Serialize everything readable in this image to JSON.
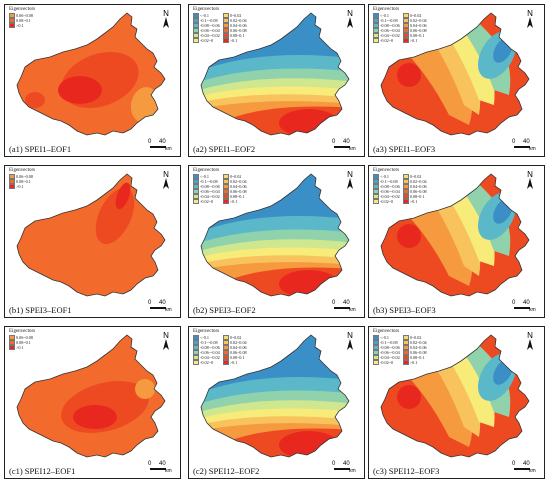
{
  "legend_title": "Eigenvectors",
  "north_label": "N",
  "scale": {
    "zero": "0",
    "forty": "40",
    "unit": "km"
  },
  "colors": {
    "deep_red": "#e8281e",
    "red": "#ee4a22",
    "orange_red": "#f26a2c",
    "orange": "#f59a3e",
    "light_orange": "#f8c35c",
    "yellow": "#f7ec7a",
    "light_green": "#cfe78f",
    "green": "#8fd2ab",
    "teal": "#5bb8c9",
    "blue": "#3a8fc6"
  },
  "legend_eof1": [
    {
      "label": "0.06~0.08",
      "color": "#f59a3e"
    },
    {
      "label": "0.08~0.1",
      "color": "#f26a2c"
    },
    {
      "label": ">0.1",
      "color": "#e8281e"
    }
  ],
  "legend_eof1_c1": [
    {
      "label": "0.06~0.08",
      "color": "#f59a3e"
    },
    {
      "label": "0.08~0.1",
      "color": "#f26a2c"
    },
    {
      "label": ">0.1",
      "color": "#e8281e"
    }
  ],
  "legend_eof_full_left": [
    {
      "label": "<-0.1",
      "color": "#3a8fc6"
    },
    {
      "label": "-0.1~-0.08",
      "color": "#4aa3c7"
    },
    {
      "label": "-0.08~-0.06",
      "color": "#5bb8c9"
    },
    {
      "label": "-0.06~-0.04",
      "color": "#8fd2ab"
    },
    {
      "label": "-0.04~-0.02",
      "color": "#cfe78f"
    },
    {
      "label": "-0.02~0",
      "color": "#f7ec7a"
    }
  ],
  "legend_eof_full_right": [
    {
      "label": "0~0.02",
      "color": "#f8dc6a"
    },
    {
      "label": "0.02~0.04",
      "color": "#f8c35c"
    },
    {
      "label": "0.04~0.06",
      "color": "#f59a3e"
    },
    {
      "label": "0.06~0.08",
      "color": "#f26a2c"
    },
    {
      "label": "0.08~0.1",
      "color": "#ee4a22"
    },
    {
      "label": ">0.1",
      "color": "#e8281e"
    }
  ],
  "panels": [
    {
      "id": "a1",
      "caption": "(a1) SPEI1–EOF1",
      "legend": "eof1"
    },
    {
      "id": "a2",
      "caption": "(a2) SPEI1–EOF2",
      "legend": "full"
    },
    {
      "id": "a3",
      "caption": "(a3) SPEI1–EOF3",
      "legend": "full"
    },
    {
      "id": "b1",
      "caption": "(b1) SPEI3–EOF1",
      "legend": "eof1"
    },
    {
      "id": "b2",
      "caption": "(b2) SPEI3–EOF2",
      "legend": "full"
    },
    {
      "id": "b3",
      "caption": "(b3) SPEI3–EOF3",
      "legend": "full"
    },
    {
      "id": "c1",
      "caption": "(c1) SPEI12–EOF1",
      "legend": "eof1"
    },
    {
      "id": "c2",
      "caption": "(c2) SPEI12–EOF2",
      "legend": "full"
    },
    {
      "id": "c3",
      "caption": "(c3) SPEI12–EOF3",
      "legend": "full"
    }
  ]
}
